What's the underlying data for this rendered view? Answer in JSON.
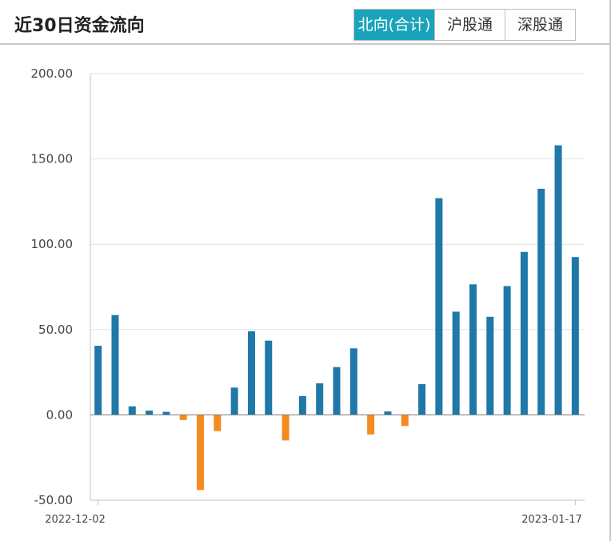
{
  "header": {
    "title": "近30日资金流向",
    "tabs": [
      {
        "label": "北向(合计)",
        "active": true
      },
      {
        "label": "沪股通",
        "active": false
      },
      {
        "label": "深股通",
        "active": false
      }
    ]
  },
  "colors": {
    "accent": "#1aa4bc",
    "positive_bar": "#1f78a8",
    "negative_bar": "#f58a1f",
    "grid": "#dde3ec",
    "axis": "#b8c4d6"
  },
  "chart_data": {
    "type": "bar",
    "title": "近30日资金流向",
    "xlabel": "",
    "ylabel": "",
    "ylim": [
      -50,
      200
    ],
    "yticks": [
      "200.00",
      "150.00",
      "100.00",
      "50.00",
      "0.00",
      "-50.00"
    ],
    "x_tick_labels": [
      "2022-12-02",
      "2023-01-17"
    ],
    "grid": true,
    "values": [
      40.5,
      58.5,
      5.0,
      2.5,
      1.8,
      -3.0,
      -44.0,
      -9.5,
      16.0,
      49.0,
      43.5,
      -15.0,
      11.0,
      18.5,
      28.0,
      39.0,
      -11.5,
      2.0,
      -6.5,
      18.0,
      127.0,
      60.5,
      76.5,
      57.5,
      75.5,
      95.5,
      132.5,
      158.0,
      92.5
    ]
  }
}
